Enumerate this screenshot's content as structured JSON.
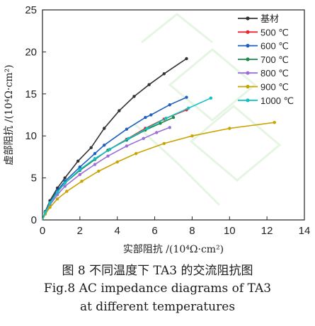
{
  "chart_data": {
    "type": "line",
    "xlabel": "实部阻抗 /(10⁴Ω·cm²)",
    "ylabel": "虚部阻抗 /(10⁴Ω·cm²)",
    "xlim": [
      0,
      14
    ],
    "ylim": [
      0,
      25
    ],
    "xticks": [
      0,
      2,
      4,
      6,
      8,
      10,
      12,
      14
    ],
    "yticks": [
      0,
      5,
      10,
      15,
      20,
      25
    ],
    "legend_position": "top-right",
    "grid": false,
    "series": [
      {
        "name": "基材",
        "color": "#333333",
        "x": [
          0,
          0.15,
          0.4,
          0.8,
          1.2,
          1.9,
          2.6,
          3.3,
          4.1,
          4.9,
          5.7,
          6.5,
          7.7
        ],
        "y": [
          0,
          1.0,
          2.3,
          3.8,
          5.0,
          7.0,
          8.6,
          10.9,
          13.0,
          14.7,
          16.1,
          17.4,
          19.2
        ]
      },
      {
        "name": "500 ℃",
        "color": "#e8262d",
        "x": [
          0,
          0.15,
          0.4,
          0.8,
          1.2,
          2.0,
          2.8,
          3.5,
          4.5,
          5.5,
          6.5,
          7.7
        ],
        "y": [
          0,
          0.9,
          2.0,
          3.3,
          4.4,
          5.9,
          7.2,
          8.3,
          9.6,
          10.9,
          12.0,
          13.1
        ]
      },
      {
        "name": "600 ℃",
        "color": "#1f5fc0",
        "x": [
          0,
          0.15,
          0.4,
          0.8,
          1.2,
          2.0,
          2.8,
          3.3,
          4.5,
          5.5,
          5.8,
          6.8,
          7.7
        ],
        "y": [
          0,
          0.9,
          2.1,
          3.5,
          4.6,
          6.3,
          7.9,
          8.9,
          10.8,
          12.2,
          12.5,
          13.7,
          14.6
        ]
      },
      {
        "name": "700 ℃",
        "color": "#1e8a4a",
        "x": [
          0,
          0.15,
          0.4,
          0.8,
          1.2,
          2.0,
          2.8,
          3.5,
          4.5,
          5.5,
          6.3,
          7.0
        ],
        "y": [
          0,
          0.9,
          2.0,
          3.3,
          4.4,
          5.9,
          7.2,
          8.3,
          9.5,
          10.7,
          11.5,
          12.2
        ]
      },
      {
        "name": "800 ℃",
        "color": "#9b6fd6",
        "x": [
          0,
          0.15,
          0.4,
          0.8,
          1.2,
          2.0,
          2.8,
          3.5,
          4.5,
          5.4,
          6.1,
          6.8
        ],
        "y": [
          0,
          0.8,
          1.8,
          3.0,
          4.0,
          5.4,
          6.6,
          7.6,
          8.8,
          9.7,
          10.4,
          11.0
        ]
      },
      {
        "name": "900 ℃",
        "color": "#c9a400",
        "x": [
          0,
          0.15,
          0.4,
          0.8,
          1.3,
          2.1,
          3.0,
          4.0,
          5.0,
          6.5,
          8.0,
          10.0,
          12.4
        ],
        "y": [
          0,
          0.7,
          1.5,
          2.5,
          3.4,
          4.6,
          5.8,
          6.9,
          7.9,
          9.1,
          10.0,
          10.9,
          11.6
        ]
      },
      {
        "name": "1000 ℃",
        "color": "#14c0c4",
        "x": [
          0,
          0.15,
          0.4,
          0.8,
          1.2,
          2.0,
          2.8,
          3.6,
          4.6,
          5.6,
          6.6,
          7.8,
          9.0
        ],
        "y": [
          0,
          0.9,
          2.0,
          3.3,
          4.4,
          6.0,
          7.3,
          8.4,
          9.7,
          10.9,
          12.1,
          13.3,
          14.5
        ]
      }
    ]
  },
  "caption": {
    "zh": "图 8  不同温度下 TA3 的交流阻抗图",
    "en_line1": "Fig.8  AC impedance diagrams of TA3",
    "en_line2": "at different temperatures"
  }
}
